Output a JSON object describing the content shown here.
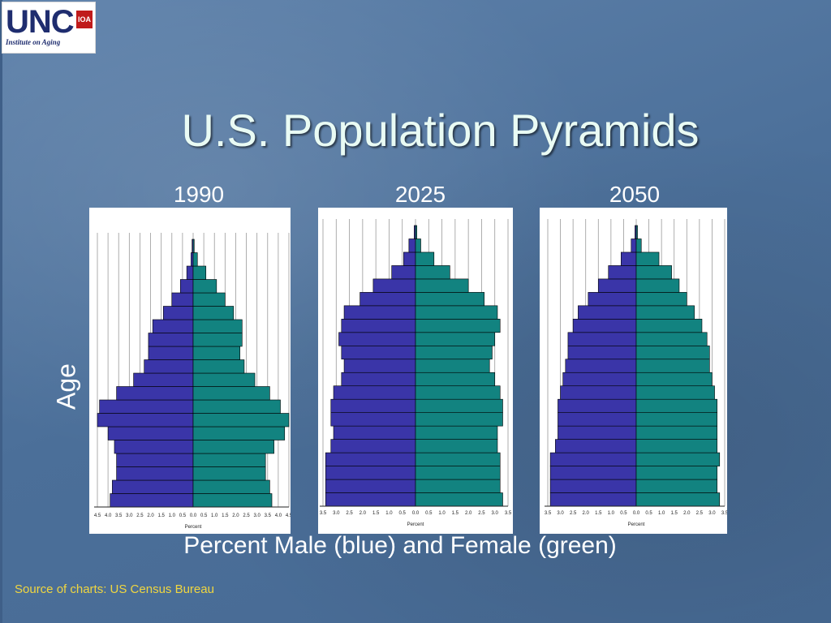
{
  "logo": {
    "main": "UNC",
    "badge": "IOA",
    "sub": "Institute on Aging"
  },
  "title": "U.S. Population Pyramids",
  "axis_labels": {
    "y": "Age",
    "x": "Percent Male (blue) and Female (green)",
    "panel_x": "Percent"
  },
  "source": "Source of charts: US Census Bureau",
  "colors": {
    "male": "#3a35a8",
    "female": "#128380"
  },
  "chart_data": [
    {
      "type": "bar",
      "title": "1990",
      "xlabel": "Percent",
      "ylabel": "Age",
      "xlim": [
        -4.5,
        4.5
      ],
      "tick_labels": [
        "4.5",
        "4.0",
        "3.5",
        "3.0",
        "2.5",
        "2.0",
        "1.5",
        "1.0",
        "0.5",
        "0.0",
        "0.5",
        "1.0",
        "1.5",
        "2.0",
        "2.5",
        "3.0",
        "3.5",
        "4.0",
        "4.5"
      ],
      "age_groups_bottom_to_top": 20,
      "series": [
        {
          "name": "Male (blue)",
          "values": [
            3.9,
            3.8,
            3.6,
            3.6,
            3.7,
            4.0,
            4.5,
            4.4,
            3.6,
            2.8,
            2.3,
            2.1,
            2.1,
            1.9,
            1.4,
            1.0,
            0.6,
            0.3,
            0.1,
            0.05
          ]
        },
        {
          "name": "Female (green)",
          "values": [
            3.7,
            3.6,
            3.4,
            3.4,
            3.8,
            4.3,
            4.5,
            4.1,
            3.6,
            2.9,
            2.4,
            2.2,
            2.3,
            2.3,
            1.9,
            1.5,
            1.1,
            0.6,
            0.2,
            0.05
          ]
        }
      ]
    },
    {
      "type": "bar",
      "title": "2025",
      "xlabel": "Percent",
      "ylabel": "Age",
      "xlim": [
        -3.5,
        3.5
      ],
      "tick_labels": [
        "3.5",
        "3.0",
        "2.5",
        "2.0",
        "1.5",
        "1.0",
        "0.5",
        "0.0",
        "0.5",
        "1.0",
        "1.5",
        "2.0",
        "2.5",
        "3.0",
        "3.5"
      ],
      "age_groups_bottom_to_top": 21,
      "series": [
        {
          "name": "Male (blue)",
          "values": [
            3.4,
            3.4,
            3.4,
            3.4,
            3.2,
            3.1,
            3.2,
            3.2,
            3.1,
            2.8,
            2.7,
            2.8,
            2.9,
            2.8,
            2.7,
            2.1,
            1.6,
            0.9,
            0.45,
            0.25,
            0.05
          ]
        },
        {
          "name": "Female (green)",
          "values": [
            3.3,
            3.2,
            3.2,
            3.2,
            3.1,
            3.1,
            3.3,
            3.3,
            3.2,
            3.0,
            2.8,
            2.9,
            3.0,
            3.2,
            3.1,
            2.6,
            2.0,
            1.3,
            0.7,
            0.2,
            0.05
          ]
        }
      ]
    },
    {
      "type": "bar",
      "title": "2050",
      "xlabel": "Percent",
      "ylabel": "Age",
      "xlim": [
        -3.5,
        3.5
      ],
      "tick_labels": [
        "3.5",
        "3.0",
        "2.5",
        "2.0",
        "1.5",
        "1.0",
        "0.5",
        "0.0",
        "0.5",
        "1.0",
        "1.5",
        "2.0",
        "2.5",
        "3.0",
        "3.5"
      ],
      "age_groups_bottom_to_top": 21,
      "series": [
        {
          "name": "Male (blue)",
          "values": [
            3.4,
            3.4,
            3.4,
            3.4,
            3.2,
            3.1,
            3.1,
            3.1,
            3.0,
            2.9,
            2.8,
            2.7,
            2.7,
            2.5,
            2.3,
            1.9,
            1.5,
            1.1,
            0.6,
            0.2,
            0.05
          ]
        },
        {
          "name": "Female (green)",
          "values": [
            3.3,
            3.2,
            3.2,
            3.3,
            3.2,
            3.2,
            3.2,
            3.2,
            3.1,
            3.0,
            2.9,
            2.9,
            2.8,
            2.6,
            2.3,
            2.0,
            1.7,
            1.4,
            0.9,
            0.2,
            0.05
          ]
        }
      ]
    }
  ]
}
